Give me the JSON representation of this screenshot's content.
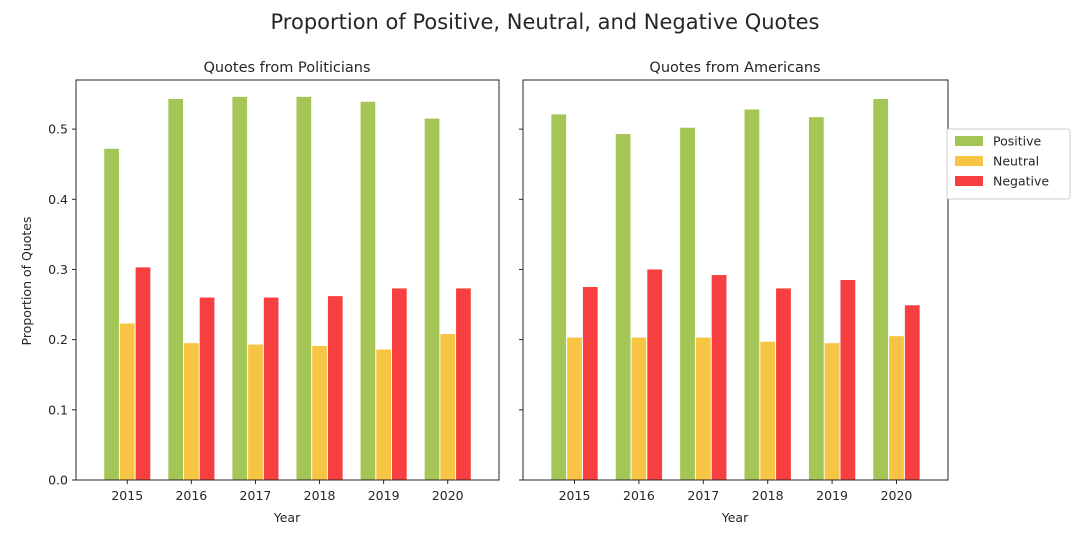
{
  "title": "Proportion of Positive, Neutral, and Negative Quotes",
  "colors": {
    "Positive": "#a3c656",
    "Neutral": "#f8c444",
    "Negative": "#f73f40"
  },
  "chart_data": [
    {
      "type": "bar",
      "title": "Quotes from Politicians",
      "xlabel": "Year",
      "ylabel": "Proportion of Quotes",
      "ylim": [
        0,
        0.57
      ],
      "yticks": [
        "0.0",
        "0.1",
        "0.2",
        "0.3",
        "0.4",
        "0.5"
      ],
      "categories": [
        "2015",
        "2016",
        "2017",
        "2018",
        "2019",
        "2020"
      ],
      "series": [
        {
          "name": "Positive",
          "values": [
            0.472,
            0.543,
            0.546,
            0.546,
            0.539,
            0.515
          ]
        },
        {
          "name": "Neutral",
          "values": [
            0.223,
            0.195,
            0.193,
            0.191,
            0.186,
            0.208
          ]
        },
        {
          "name": "Negative",
          "values": [
            0.303,
            0.26,
            0.26,
            0.262,
            0.273,
            0.273
          ]
        }
      ],
      "grid": false
    },
    {
      "type": "bar",
      "title": "Quotes from Americans",
      "xlabel": "Year",
      "ylabel": "",
      "ylim": [
        0,
        0.57
      ],
      "categories": [
        "2015",
        "2016",
        "2017",
        "2018",
        "2019",
        "2020"
      ],
      "series": [
        {
          "name": "Positive",
          "values": [
            0.521,
            0.493,
            0.502,
            0.528,
            0.517,
            0.543
          ]
        },
        {
          "name": "Neutral",
          "values": [
            0.203,
            0.203,
            0.203,
            0.197,
            0.195,
            0.205
          ]
        },
        {
          "name": "Negative",
          "values": [
            0.275,
            0.3,
            0.292,
            0.273,
            0.285,
            0.249
          ]
        }
      ],
      "grid": false,
      "sharey": true
    }
  ],
  "legend": {
    "placement": "right",
    "entries": [
      "Positive",
      "Neutral",
      "Negative"
    ]
  }
}
